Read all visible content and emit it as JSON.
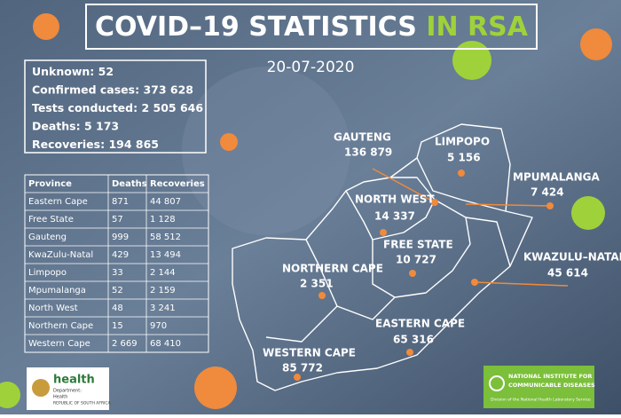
{
  "header": {
    "title": "COVID–19 STATISTICS",
    "title_highlight": "IN RSA",
    "date": "20-07-2020"
  },
  "summary": [
    {
      "label": "Unknown:",
      "value": "52"
    },
    {
      "label": "Confirmed cases:",
      "value": "373 628"
    },
    {
      "label": "Tests conducted:",
      "value": "2 505 646"
    },
    {
      "label": "Deaths:",
      "value": "5 173"
    },
    {
      "label": "Recoveries:",
      "value": "194 865"
    }
  ],
  "table": {
    "columns": [
      "Province",
      "Deaths",
      "Recoveries"
    ],
    "rows": [
      [
        "Eastern Cape",
        "871",
        "44 807"
      ],
      [
        "Free State",
        "57",
        "1 128"
      ],
      [
        "Gauteng",
        "999",
        "58 512"
      ],
      [
        "KwaZulu-Natal",
        "429",
        "13 494"
      ],
      [
        "Limpopo",
        "33",
        "2 144"
      ],
      [
        "Mpumalanga",
        "52",
        "2 159"
      ],
      [
        "North West",
        "48",
        "3 241"
      ],
      [
        "Northern Cape",
        "15",
        "970"
      ],
      [
        "Western Cape",
        "2 669",
        "68 410"
      ]
    ]
  },
  "map": [
    {
      "name": "GAUTENG",
      "value": "136 879"
    },
    {
      "name": "LIMPOPO",
      "value": "5 156"
    },
    {
      "name": "MPUMALANGA",
      "value": "7 424"
    },
    {
      "name": "NORTH WEST",
      "value": "14 337"
    },
    {
      "name": "FREE STATE",
      "value": "10 727"
    },
    {
      "name": "NORTHERN CAPE",
      "value": "2 351"
    },
    {
      "name": "KWAZULU–NATAL",
      "value": "45 614"
    },
    {
      "name": "EASTERN CAPE",
      "value": "65 316"
    },
    {
      "name": "WESTERN CAPE",
      "value": "85 772"
    }
  ],
  "logos": {
    "health": "health",
    "department": "Department:",
    "dept_name": "Health",
    "republic": "REPUBLIC OF SOUTH AFRICA",
    "nicd_line1": "NATIONAL INSTITUTE FOR",
    "nicd_line2": "COMMUNICABLE DISEASES",
    "nicd_sub": "Division of the National Health Laboratory Service"
  }
}
